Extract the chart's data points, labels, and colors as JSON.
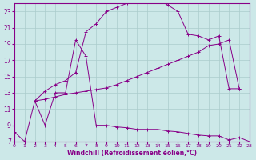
{
  "xlabel": "Windchill (Refroidissement éolien,°C)",
  "bg_color": "#cce8e8",
  "grid_color": "#aacccc",
  "line_color": "#880088",
  "xlim": [
    0,
    23
  ],
  "ylim": [
    7,
    24
  ],
  "yticks": [
    7,
    9,
    11,
    13,
    15,
    17,
    19,
    21,
    23
  ],
  "xticks": [
    0,
    1,
    2,
    3,
    4,
    5,
    6,
    7,
    8,
    9,
    10,
    11,
    12,
    13,
    14,
    15,
    16,
    17,
    18,
    19,
    20,
    21,
    22,
    23
  ],
  "curve1_x": [
    0,
    1,
    2,
    3,
    4,
    5,
    6,
    7,
    8,
    9,
    10,
    11,
    12,
    13,
    14,
    15,
    16,
    17,
    18,
    19,
    20,
    21,
    22,
    23
  ],
  "curve1_y": [
    8.2,
    7.0,
    12.0,
    9.0,
    13.0,
    13.0,
    19.5,
    17.5,
    9.0,
    9.0,
    8.8,
    8.7,
    8.5,
    8.5,
    8.5,
    8.3,
    8.2,
    8.0,
    7.8,
    7.7,
    7.7,
    7.2,
    7.5,
    7.0
  ],
  "curve2_x": [
    2,
    3,
    4,
    5,
    6,
    7,
    8,
    9,
    10,
    11,
    12,
    13,
    14,
    15,
    16,
    17,
    18,
    19,
    20,
    21,
    22
  ],
  "curve2_y": [
    12.0,
    12.2,
    12.5,
    12.8,
    13.0,
    13.2,
    13.4,
    13.6,
    14.0,
    14.5,
    15.0,
    15.5,
    16.0,
    16.5,
    17.0,
    17.5,
    18.0,
    18.8,
    19.0,
    19.5,
    13.5
  ],
  "curve3_x": [
    2,
    3,
    4,
    5,
    6,
    7,
    8,
    9,
    10,
    11,
    12,
    13,
    14,
    15,
    16,
    17,
    18,
    19,
    20,
    21,
    22
  ],
  "curve3_y": [
    12.0,
    13.2,
    14.0,
    14.5,
    15.5,
    20.5,
    21.5,
    23.0,
    23.5,
    24.0,
    24.3,
    24.5,
    24.5,
    23.8,
    23.0,
    20.2,
    20.0,
    19.5,
    20.0,
    13.5,
    13.5
  ]
}
